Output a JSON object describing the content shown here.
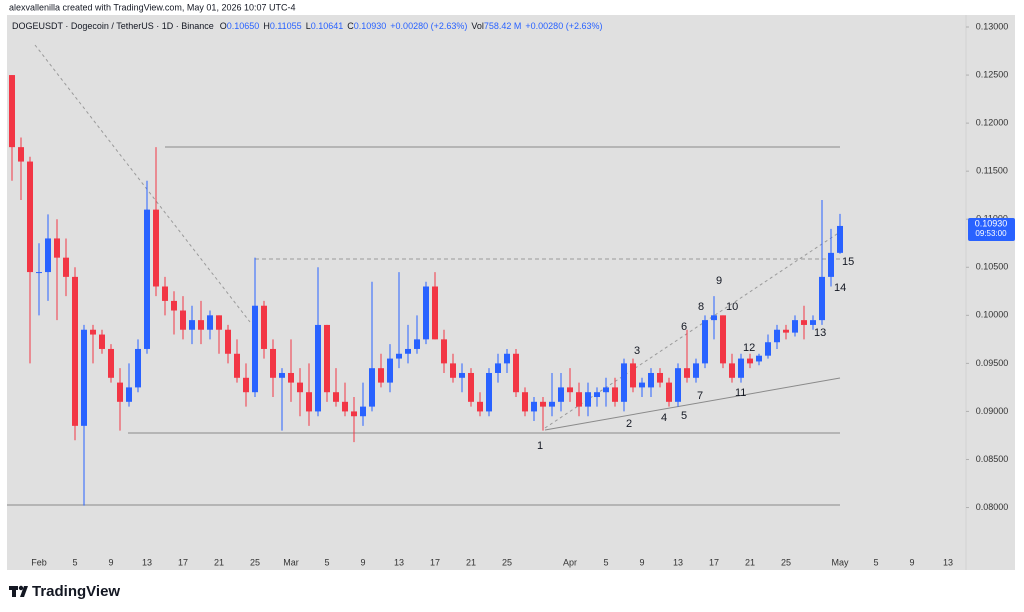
{
  "header": {
    "credit": "alexvallenilla created with TradingView.com, May 01, 2026 10:07 UTC-4"
  },
  "chart_data": {
    "type": "candlestick",
    "symbol": "DOGEUSDT · Dogecoin / TetherUS · 1D · Binance",
    "ohlc_legend": [
      {
        "key": "O",
        "value": "0.10650"
      },
      {
        "key": "H",
        "value": "0.11055"
      },
      {
        "key": "L",
        "value": "0.10641"
      },
      {
        "key": "C",
        "value": "0.10930"
      }
    ],
    "change": "+0.00280 (+2.63%)",
    "volume_key": "Vol",
    "volume": "758.42 M",
    "volume_change": "+0.00280 (+2.63%)",
    "up_color": "#2962ff",
    "down_color": "#f23645",
    "categories": [
      null,
      null,
      null,
      "Feb",
      null,
      null,
      null,
      "5",
      null,
      null,
      null,
      "9",
      null,
      null,
      null,
      "13",
      null,
      null,
      null,
      "17",
      null,
      null,
      null,
      "21",
      null,
      null,
      null,
      "25",
      null,
      null,
      null,
      "Mar",
      null,
      null,
      null,
      "5",
      null,
      null,
      null,
      "9",
      null,
      null,
      null,
      "13",
      null,
      null,
      null,
      "17",
      null,
      null,
      null,
      "21",
      null,
      null,
      null,
      "25",
      null,
      null,
      null,
      null,
      null,
      null,
      "Apr",
      null,
      null,
      null,
      "5",
      null,
      null,
      null,
      "9",
      null,
      null,
      null,
      "13",
      null,
      null,
      null,
      "17",
      null,
      null,
      null,
      "21",
      null,
      null,
      null,
      "25",
      null,
      null,
      null,
      null,
      null,
      "May",
      null,
      null,
      null,
      "5",
      null,
      null,
      null,
      "9",
      null,
      null,
      null,
      "13"
    ],
    "open": [
      0.125,
      0.1175,
      0.116,
      0.1045,
      0.1045,
      0.108,
      0.106,
      0.104,
      0.0885,
      0.0985,
      0.098,
      0.0965,
      0.093,
      0.091,
      0.0925,
      0.0965,
      0.111,
      0.103,
      0.1015,
      0.1005,
      0.0985,
      0.0995,
      0.0985,
      0.1,
      0.0985,
      0.096,
      0.0935,
      0.092,
      0.101,
      0.0965,
      0.0935,
      0.094,
      0.093,
      0.092,
      0.09,
      0.099,
      0.092,
      0.091,
      0.09,
      0.0895,
      0.0905,
      0.0945,
      0.093,
      0.0955,
      0.096,
      0.0965,
      0.0975,
      0.103,
      0.0975,
      0.095,
      0.0935,
      0.094,
      0.091,
      0.09,
      0.094,
      0.095,
      0.096,
      0.092,
      0.09,
      0.091,
      0.0905,
      0.091,
      0.0925,
      0.092,
      0.0905,
      0.0915,
      0.092,
      0.0925,
      0.091,
      0.095,
      0.0925,
      0.0925,
      0.094,
      0.093,
      0.091,
      0.0945,
      0.0935,
      0.095,
      0.0995,
      0.1,
      0.095,
      0.0935,
      0.0955,
      0.0952,
      0.0958,
      0.0972,
      0.0985,
      0.0982,
      0.0995,
      0.099,
      0.0995,
      0.104,
      0.1065,
      null,
      null,
      null,
      null,
      null,
      null,
      null,
      null,
      null,
      null,
      null,
      null
    ],
    "high": [
      0.125,
      0.1185,
      0.1165,
      0.1075,
      0.1105,
      0.11,
      0.108,
      0.105,
      0.099,
      0.099,
      0.0985,
      0.097,
      0.0945,
      0.095,
      0.0975,
      0.114,
      0.1175,
      0.104,
      0.1025,
      0.102,
      0.101,
      0.1015,
      0.1005,
      0.1,
      0.099,
      0.0975,
      0.095,
      0.106,
      0.1015,
      0.0975,
      0.0945,
      0.0975,
      0.0945,
      0.095,
      0.105,
      0.099,
      0.0945,
      0.093,
      0.0915,
      0.093,
      0.1035,
      0.096,
      0.097,
      0.1045,
      0.099,
      0.1,
      0.1035,
      0.1045,
      0.0985,
      0.096,
      0.095,
      0.0945,
      0.092,
      0.0945,
      0.096,
      0.0965,
      0.0965,
      0.0925,
      0.0915,
      0.0915,
      0.094,
      0.094,
      0.0945,
      0.093,
      0.093,
      0.0925,
      0.0935,
      0.0935,
      0.0955,
      0.0955,
      0.0935,
      0.0945,
      0.0945,
      0.0935,
      0.095,
      0.0985,
      0.0955,
      0.1,
      0.102,
      0.1,
      0.096,
      0.096,
      0.096,
      0.096,
      0.098,
      0.099,
      0.099,
      0.1,
      0.101,
      0.1,
      0.112,
      0.109,
      0.11055,
      null,
      null,
      null,
      null,
      null,
      null,
      null,
      null,
      null,
      null,
      null,
      null
    ],
    "low": [
      0.114,
      0.112,
      0.095,
      0.1,
      0.1015,
      0.0995,
      0.102,
      0.087,
      0.0802,
      0.095,
      0.096,
      0.093,
      0.088,
      0.0905,
      0.092,
      0.096,
      0.102,
      0.1,
      0.098,
      0.0975,
      0.097,
      0.097,
      0.0975,
      0.096,
      0.095,
      0.093,
      0.0905,
      0.0915,
      0.0955,
      0.0915,
      0.088,
      0.091,
      0.0895,
      0.0885,
      0.0895,
      0.091,
      0.0905,
      0.0895,
      0.0868,
      0.0885,
      0.09,
      0.0925,
      0.092,
      0.0945,
      0.095,
      0.096,
      0.097,
      0.0975,
      0.094,
      0.093,
      0.092,
      0.0905,
      0.0895,
      0.0895,
      0.093,
      0.094,
      0.0915,
      0.0895,
      0.089,
      0.088,
      0.0895,
      0.09,
      0.091,
      0.0895,
      0.0895,
      0.0905,
      0.0905,
      0.0905,
      0.09,
      0.092,
      0.0915,
      0.0915,
      0.0925,
      0.0905,
      0.0905,
      0.093,
      0.093,
      0.0945,
      0.0975,
      0.0945,
      0.093,
      0.093,
      0.0945,
      0.0948,
      0.0955,
      0.0965,
      0.0975,
      0.0978,
      0.0975,
      0.0985,
      0.099,
      0.103,
      0.10641,
      null,
      null,
      null,
      null,
      null,
      null,
      null,
      null,
      null,
      null,
      null,
      null
    ],
    "close": [
      0.1175,
      0.116,
      0.1045,
      0.1045,
      0.108,
      0.106,
      0.104,
      0.0885,
      0.0985,
      0.098,
      0.0965,
      0.0935,
      0.091,
      0.0925,
      0.0965,
      0.111,
      0.103,
      0.1015,
      0.1005,
      0.0985,
      0.0995,
      0.0985,
      0.1,
      0.0985,
      0.096,
      0.0935,
      0.092,
      0.101,
      0.0965,
      0.0935,
      0.094,
      0.093,
      0.092,
      0.09,
      0.099,
      0.092,
      0.091,
      0.09,
      0.0895,
      0.0905,
      0.0945,
      0.093,
      0.0955,
      0.096,
      0.0965,
      0.0975,
      0.103,
      0.0975,
      0.095,
      0.0935,
      0.094,
      0.091,
      0.09,
      0.094,
      0.095,
      0.096,
      0.092,
      0.09,
      0.091,
      0.0905,
      0.091,
      0.0925,
      0.092,
      0.0905,
      0.092,
      0.092,
      0.0925,
      0.091,
      0.095,
      0.0925,
      0.093,
      0.094,
      0.093,
      0.091,
      0.0945,
      0.0935,
      0.095,
      0.0995,
      0.1,
      0.095,
      0.0935,
      0.0955,
      0.095,
      0.0958,
      0.0972,
      0.0985,
      0.0982,
      0.0995,
      0.099,
      0.0995,
      0.104,
      0.1065,
      0.1093,
      null,
      null,
      null,
      null,
      null,
      null,
      null,
      null,
      null,
      null,
      null,
      null
    ],
    "ylim": [
      0.0735,
      0.13125
    ],
    "yticks": [
      {
        "value": 0.13,
        "label": "0.13000"
      },
      {
        "value": 0.125,
        "label": "0.12500"
      },
      {
        "value": 0.12,
        "label": "0.12000"
      },
      {
        "value": 0.115,
        "label": "0.11500"
      },
      {
        "value": 0.11,
        "label": "0.11000"
      },
      {
        "value": 0.105,
        "label": "0.10500"
      },
      {
        "value": 0.1,
        "label": "0.10000"
      },
      {
        "value": 0.095,
        "label": "0.09500"
      },
      {
        "value": 0.09,
        "label": "0.09000"
      },
      {
        "value": 0.085,
        "label": "0.08500"
      },
      {
        "value": 0.08,
        "label": "0.08000"
      }
    ],
    "grid": false,
    "last_price_label": "0.10930",
    "countdown": "09:53:00",
    "annotations": [
      "1",
      "2",
      "3",
      "4",
      "5",
      "6",
      "7",
      "8",
      "9",
      "10",
      "11",
      "12",
      "13",
      "14",
      "15"
    ]
  },
  "footer": {
    "brand": "TradingView"
  }
}
